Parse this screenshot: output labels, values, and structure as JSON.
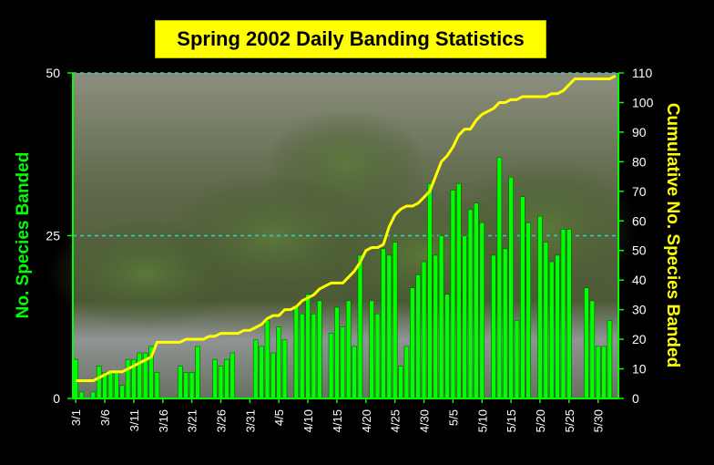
{
  "chart_data": {
    "type": "bar",
    "title": "Spring 2002 Daily Banding Statistics",
    "ylabel": "No. Species Banded",
    "y2label": "Cumulative No. Species Banded",
    "xlabel": "",
    "ylim": [
      0,
      50
    ],
    "y2lim": [
      0,
      110
    ],
    "yticks": [
      0,
      25,
      50
    ],
    "y2ticks": [
      0,
      10,
      20,
      30,
      40,
      50,
      60,
      70,
      80,
      90,
      100,
      110
    ],
    "dates": [
      "3/1",
      "3/2",
      "3/3",
      "3/4",
      "3/5",
      "3/6",
      "3/7",
      "3/8",
      "3/9",
      "3/10",
      "3/11",
      "3/12",
      "3/13",
      "3/14",
      "3/15",
      "3/16",
      "3/17",
      "3/18",
      "3/19",
      "3/20",
      "3/21",
      "3/22",
      "3/23",
      "3/24",
      "3/25",
      "3/26",
      "3/27",
      "3/28",
      "3/29",
      "3/30",
      "3/31",
      "4/1",
      "4/2",
      "4/3",
      "4/4",
      "4/5",
      "4/6",
      "4/7",
      "4/8",
      "4/9",
      "4/10",
      "4/11",
      "4/12",
      "4/13",
      "4/14",
      "4/15",
      "4/16",
      "4/17",
      "4/18",
      "4/19",
      "4/20",
      "4/21",
      "4/22",
      "4/23",
      "4/24",
      "4/25",
      "4/26",
      "4/27",
      "4/28",
      "4/29",
      "4/30",
      "5/1",
      "5/2",
      "5/3",
      "5/4",
      "5/5",
      "5/6",
      "5/7",
      "5/8",
      "5/9",
      "5/10",
      "5/11",
      "5/12",
      "5/13",
      "5/14",
      "5/15",
      "5/16",
      "5/17",
      "5/18",
      "5/19",
      "5/20",
      "5/21",
      "5/22",
      "5/23",
      "5/24",
      "5/25",
      "5/26",
      "5/27",
      "5/28",
      "5/29",
      "5/30",
      "5/31",
      "6/1",
      "6/2"
    ],
    "xtick_labels": [
      "3/1",
      "3/6",
      "3/11",
      "3/16",
      "3/21",
      "3/26",
      "3/31",
      "4/5",
      "4/10",
      "4/15",
      "4/20",
      "4/25",
      "4/30",
      "5/5",
      "5/10",
      "5/15",
      "5/20",
      "5/25",
      "5/30"
    ],
    "series": [
      {
        "type": "bar",
        "color": "#00ff00",
        "values": [
          6,
          1,
          0,
          1,
          5,
          4,
          4,
          4,
          2,
          6,
          6,
          7,
          7,
          8,
          4,
          0,
          0,
          0,
          5,
          4,
          4,
          8,
          0,
          0,
          6,
          5,
          6,
          7,
          0,
          0,
          0,
          9,
          8,
          12,
          7,
          11,
          9,
          0,
          14,
          13,
          16,
          13,
          15,
          0,
          10,
          14,
          11,
          15,
          8,
          22,
          0,
          15,
          13,
          23,
          22,
          24,
          5,
          8,
          17,
          19,
          21,
          33,
          22,
          25,
          16,
          32,
          33,
          25,
          29,
          30,
          27,
          0,
          22,
          37,
          23,
          34,
          12,
          31,
          27,
          0,
          28,
          24,
          21,
          22,
          26,
          26,
          0,
          0,
          17,
          15,
          8,
          8,
          12,
          0
        ]
      },
      {
        "type": "line",
        "axis": "right",
        "color": "#ffff00",
        "values": [
          6,
          6,
          6,
          6,
          7,
          8,
          9,
          9,
          9,
          10,
          11,
          12,
          13,
          14,
          19,
          19,
          19,
          19,
          19,
          20,
          20,
          20,
          20,
          21,
          21,
          22,
          22,
          22,
          22,
          23,
          23,
          24,
          25,
          27,
          28,
          28,
          30,
          30,
          31,
          33,
          34,
          35,
          37,
          38,
          39,
          39,
          39,
          41,
          43,
          46,
          50,
          51,
          51,
          52,
          58,
          62,
          64,
          65,
          65,
          66,
          68,
          70,
          75,
          80,
          82,
          85,
          89,
          91,
          91,
          94,
          96,
          97,
          98,
          100,
          100,
          101,
          101,
          102,
          102,
          102,
          102,
          102,
          103,
          103,
          104,
          106,
          108,
          108,
          108,
          108,
          108,
          108,
          108,
          109
        ]
      }
    ],
    "reference_lines": [
      {
        "axis": "left",
        "value": 25,
        "color": "#33cccc",
        "style": "dashed"
      },
      {
        "axis": "left",
        "value": 50,
        "color": "#33cccc",
        "style": "dashed"
      }
    ],
    "grid": false,
    "colors": {
      "background": "#000000",
      "left_axis": "#00ff00",
      "right_axis": "#ffff00",
      "title_box": "#ffff00"
    }
  }
}
